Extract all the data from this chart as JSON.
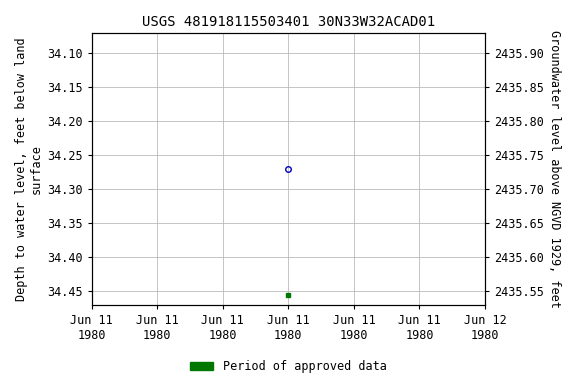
{
  "title": "USGS 481918115503401 30N33W32ACAD01",
  "ylabel_left": "Depth to water level, feet below land\nsurface",
  "ylabel_right": "Groundwater level above NGVD 1929, feet",
  "ylim_left": [
    34.47,
    34.07
  ],
  "ylim_right_bottom": 2435.53,
  "ylim_right_top": 2435.93,
  "yticks_left": [
    34.1,
    34.15,
    34.2,
    34.25,
    34.3,
    34.35,
    34.4,
    34.45
  ],
  "yticks_right": [
    2435.9,
    2435.85,
    2435.8,
    2435.75,
    2435.7,
    2435.65,
    2435.6,
    2435.55
  ],
  "grid_color": "#bbbbbb",
  "background_color": "#ffffff",
  "title_fontsize": 10,
  "tick_fontsize": 8.5,
  "label_fontsize": 8.5,
  "blue_point_x_hours": 12,
  "blue_point_y": 34.27,
  "blue_point_color": "#0000bb",
  "blue_point_markersize": 4,
  "green_point_x_hours": 12,
  "green_point_y": 34.455,
  "green_point_color": "#007700",
  "green_point_markersize": 3,
  "legend_label": "Period of approved data",
  "legend_color": "#007700",
  "xaxis_start_hours": 0,
  "xaxis_end_hours": 24,
  "xtick_hours": [
    0,
    4,
    8,
    12,
    16,
    20,
    24
  ],
  "xtick_labels": [
    "Jun 11\n1980",
    "Jun 11\n1980",
    "Jun 11\n1980",
    "Jun 11\n1980",
    "Jun 11\n1980",
    "Jun 11\n1980",
    "Jun 12\n1980"
  ]
}
